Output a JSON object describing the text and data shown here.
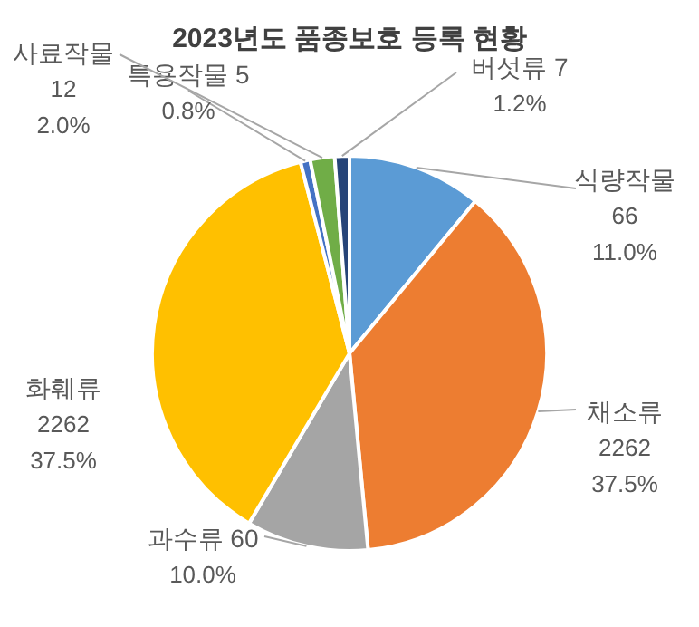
{
  "chart_data": {
    "type": "pie",
    "title": "2023년도 품종보호 등록 현황",
    "categories": [
      "식량작물",
      "채소류",
      "과수류",
      "화훼류",
      "특용작물",
      "사료작물",
      "버섯류"
    ],
    "values": [
      11.0,
      37.5,
      10.0,
      37.5,
      0.8,
      2.0,
      1.2
    ],
    "value_labels": [
      "66 11.0%",
      "2262 37.5%",
      "60 10.0%",
      "2262 37.5%",
      "5 0.8%",
      "12 2.0%",
      "7 1.2%"
    ],
    "colors": [
      "#5b9bd5",
      "#ed7d31",
      "#a5a5a5",
      "#ffc000",
      "#4472c4",
      "#70ad47",
      "#264478"
    ],
    "legend": false
  }
}
